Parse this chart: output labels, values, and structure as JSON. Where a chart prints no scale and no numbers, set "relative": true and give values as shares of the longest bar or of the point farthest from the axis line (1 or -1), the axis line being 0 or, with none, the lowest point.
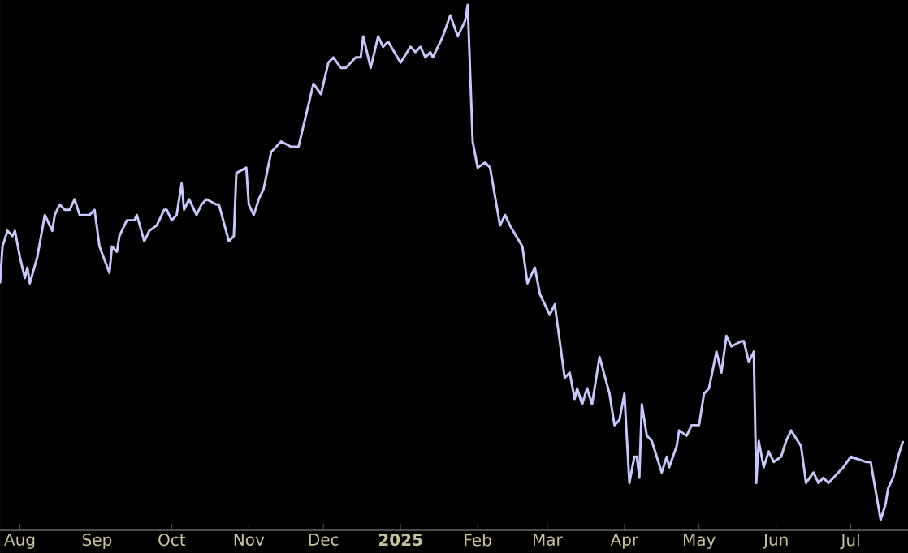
{
  "chart_data": {
    "type": "line",
    "relative": true,
    "color": "#c8c8ff",
    "marker": "none",
    "line_style": "solid",
    "grid": false,
    "xlim": [
      "2024-07-24",
      "2025-07-24"
    ],
    "xticks": [
      {
        "value": "2024-08-01",
        "label": "Aug"
      },
      {
        "value": "2024-09-01",
        "label": "Sep"
      },
      {
        "value": "2024-10-01",
        "label": "Oct"
      },
      {
        "value": "2024-11-01",
        "label": "Nov"
      },
      {
        "value": "2024-12-01",
        "label": "Dec"
      },
      {
        "value": "2025-01-01",
        "label": "**2025**"
      },
      {
        "value": "2025-02-01",
        "label": "Feb"
      },
      {
        "value": "2025-03-01",
        "label": "Mar"
      },
      {
        "value": "2025-04-01",
        "label": "Apr"
      },
      {
        "value": "2025-05-01",
        "label": "May"
      },
      {
        "value": "2025-06-01",
        "label": "Jun"
      },
      {
        "value": "2025-07-01",
        "label": "Jul"
      }
    ],
    "x": [
      "2024-07-24",
      "2024-07-25",
      "2024-07-27",
      "2024-07-29",
      "2024-07-30",
      "2024-08-01",
      "2024-08-03",
      "2024-08-04",
      "2024-08-05",
      "2024-08-08",
      "2024-08-11",
      "2024-08-14",
      "2024-08-15",
      "2024-08-17",
      "2024-08-19",
      "2024-08-21",
      "2024-08-23",
      "2024-08-25",
      "2024-08-28",
      "2024-08-29",
      "2024-08-31",
      "2024-09-02",
      "2024-09-06",
      "2024-09-07",
      "2024-09-09",
      "2024-09-10",
      "2024-09-13",
      "2024-09-16",
      "2024-09-17",
      "2024-09-20",
      "2024-09-22",
      "2024-09-25",
      "2024-09-28",
      "2024-09-29",
      "2024-10-01",
      "2024-10-03",
      "2024-10-05",
      "2024-10-06",
      "2024-10-08",
      "2024-10-11",
      "2024-10-13",
      "2024-10-15",
      "2024-10-19",
      "2024-10-20",
      "2024-10-24",
      "2024-10-26",
      "2024-10-27",
      "2024-10-31",
      "2024-11-01",
      "2024-11-03",
      "2024-11-05",
      "2024-11-07",
      "2024-11-10",
      "2024-11-14",
      "2024-11-18",
      "2024-11-21",
      "2024-11-23",
      "2024-11-26",
      "2024-11-27",
      "2024-11-30",
      "2024-12-03",
      "2024-12-05",
      "2024-12-08",
      "2024-12-10",
      "2024-12-14",
      "2024-12-16",
      "2024-12-17",
      "2024-12-20",
      "2024-12-23",
      "2024-12-25",
      "2024-12-27",
      "2025-01-01",
      "2025-01-05",
      "2025-01-07",
      "2025-01-09",
      "2025-01-11",
      "2025-01-13",
      "2025-01-14",
      "2025-01-18",
      "2025-01-21",
      "2025-01-24",
      "2025-01-27",
      "2025-01-28",
      "2025-01-30",
      "2025-02-01",
      "2025-02-04",
      "2025-02-06",
      "2025-02-10",
      "2025-02-12",
      "2025-02-14",
      "2025-02-19",
      "2025-02-21",
      "2025-02-24",
      "2025-02-26",
      "2025-03-02",
      "2025-03-04",
      "2025-03-08",
      "2025-03-10",
      "2025-03-12",
      "2025-03-13",
      "2025-03-15",
      "2025-03-17",
      "2025-03-19",
      "2025-03-22",
      "2025-03-26",
      "2025-03-28",
      "2025-03-30",
      "2025-04-01",
      "2025-04-03",
      "2025-04-05",
      "2025-04-06",
      "2025-04-07",
      "2025-04-08",
      "2025-04-10",
      "2025-04-12",
      "2025-04-16",
      "2025-04-18",
      "2025-04-19",
      "2025-04-22",
      "2025-04-23",
      "2025-04-26",
      "2025-04-28",
      "2025-05-01",
      "2025-05-03",
      "2025-05-05",
      "2025-05-08",
      "2025-05-10",
      "2025-05-12",
      "2025-05-14",
      "2025-05-18",
      "2025-05-19",
      "2025-05-21",
      "2025-05-23",
      "2025-05-24",
      "2025-05-25",
      "2025-05-27",
      "2025-05-29",
      "2025-05-31",
      "2025-06-03",
      "2025-06-05",
      "2025-06-07",
      "2025-06-11",
      "2025-06-13",
      "2025-06-16",
      "2025-06-18",
      "2025-06-20",
      "2025-06-22",
      "2025-06-26",
      "2025-06-28",
      "2025-07-01",
      "2025-07-07",
      "2025-07-09",
      "2025-07-13",
      "2025-07-15",
      "2025-07-16",
      "2025-07-18",
      "2025-07-20",
      "2025-07-22"
    ],
    "values": [
      0.47,
      0.54,
      0.57,
      0.56,
      0.57,
      0.52,
      0.48,
      0.5,
      0.47,
      0.52,
      0.6,
      0.57,
      0.6,
      0.62,
      0.61,
      0.61,
      0.63,
      0.6,
      0.6,
      0.6,
      0.61,
      0.54,
      0.49,
      0.54,
      0.53,
      0.56,
      0.59,
      0.59,
      0.6,
      0.55,
      0.57,
      0.58,
      0.61,
      0.61,
      0.59,
      0.6,
      0.66,
      0.61,
      0.63,
      0.6,
      0.62,
      0.63,
      0.62,
      0.62,
      0.55,
      0.56,
      0.68,
      0.69,
      0.62,
      0.6,
      0.63,
      0.65,
      0.72,
      0.74,
      0.73,
      0.73,
      0.77,
      0.83,
      0.85,
      0.83,
      0.89,
      0.9,
      0.88,
      0.88,
      0.9,
      0.9,
      0.94,
      0.88,
      0.94,
      0.92,
      0.93,
      0.89,
      0.92,
      0.91,
      0.92,
      0.9,
      0.91,
      0.9,
      0.94,
      0.98,
      0.94,
      0.97,
      1.0,
      0.74,
      0.69,
      0.7,
      0.69,
      0.58,
      0.6,
      0.58,
      0.54,
      0.47,
      0.5,
      0.45,
      0.41,
      0.43,
      0.29,
      0.3,
      0.25,
      0.27,
      0.24,
      0.27,
      0.24,
      0.33,
      0.26,
      0.2,
      0.21,
      0.26,
      0.09,
      0.14,
      0.14,
      0.1,
      0.24,
      0.18,
      0.17,
      0.11,
      0.14,
      0.12,
      0.16,
      0.19,
      0.18,
      0.2,
      0.2,
      0.26,
      0.27,
      0.34,
      0.3,
      0.37,
      0.35,
      0.36,
      0.36,
      0.32,
      0.34,
      0.09,
      0.17,
      0.12,
      0.15,
      0.13,
      0.14,
      0.17,
      0.19,
      0.16,
      0.09,
      0.11,
      0.09,
      0.1,
      0.09,
      0.11,
      0.12,
      0.14,
      0.13,
      0.13,
      0.02,
      0.05,
      0.08,
      0.1,
      0.14,
      0.17
    ]
  }
}
